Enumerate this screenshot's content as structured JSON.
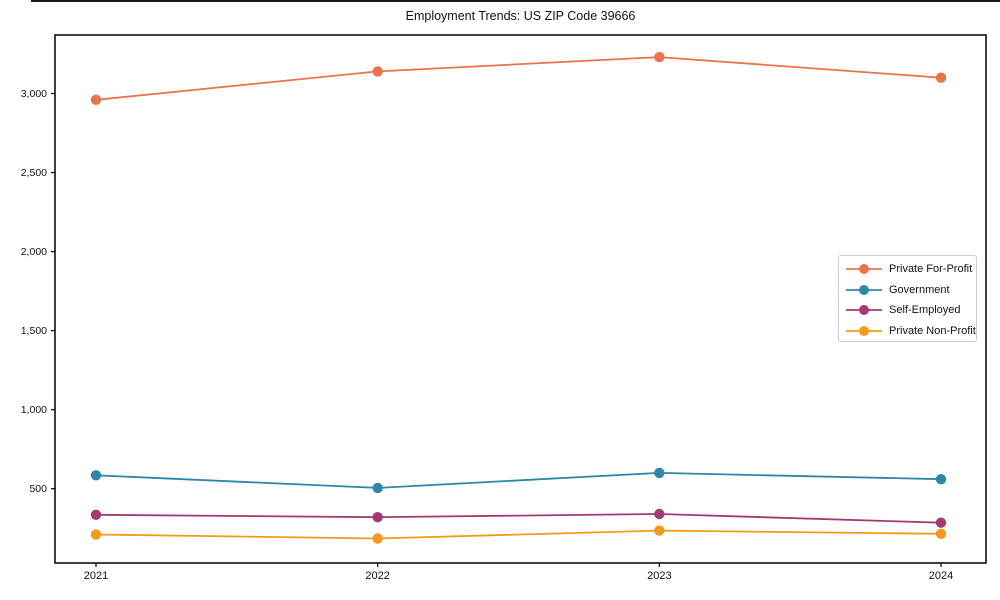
{
  "top_title": "Employment Trends: US ZIP Code 39666",
  "chart_data": {
    "type": "line",
    "title": "Employment Trends: US ZIP Code 39666",
    "xlabel": "",
    "ylabel": "",
    "x_categories": [
      "2021",
      "2022",
      "2023",
      "2024"
    ],
    "y_ticks": [
      500,
      1000,
      1500,
      2000,
      2500,
      3000
    ],
    "y_tick_labels": [
      "500",
      "1,000",
      "1,500",
      "2,000",
      "2,500",
      "3,000"
    ],
    "ylim": [
      30,
      3370
    ],
    "grid": false,
    "legend_position": "center right",
    "frame": true,
    "series": [
      {
        "name": "Private For-Profit",
        "color": "#E8744B",
        "values": [
          2960,
          3140,
          3230,
          3100
        ]
      },
      {
        "name": "Government",
        "color": "#2E87A9",
        "values": [
          585,
          505,
          600,
          560
        ]
      },
      {
        "name": "Self-Employed",
        "color": "#A43A74",
        "values": [
          335,
          320,
          340,
          285
        ]
      },
      {
        "name": "Private Non-Profit",
        "color": "#F39A1D",
        "values": [
          210,
          185,
          235,
          215
        ]
      }
    ]
  }
}
